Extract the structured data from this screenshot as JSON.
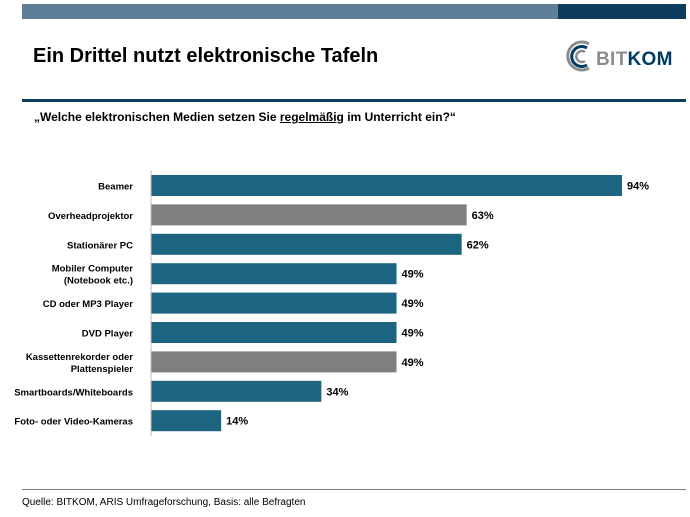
{
  "header": {
    "title": "Ein Drittel nutzt elektronische Tafeln",
    "logo_text_prefix": "BIT",
    "logo_text_suffix": "KOM",
    "logo_icon": "bitkom-arc-logo-icon"
  },
  "question": {
    "prefix": "„Welche elektronischen Medien setzen Sie ",
    "underlined": "regelmäßig",
    "suffix": " im Unterricht ein?“"
  },
  "colors": {
    "bar_primary": "#1c6480",
    "bar_secondary": "#7f7f7f",
    "top_bar_left": "#5f7f99",
    "top_bar_right": "#0e3c5c"
  },
  "chart_data": {
    "type": "bar",
    "orientation": "horizontal",
    "title": "",
    "xlabel": "",
    "ylabel": "",
    "xlim": [
      0,
      100
    ],
    "unit": "%",
    "grid": false,
    "categories": [
      [
        "Beamer"
      ],
      [
        "Overheadprojektor"
      ],
      [
        "Stationärer PC"
      ],
      [
        "Mobiler Computer",
        "(Notebook etc.)"
      ],
      [
        "CD oder MP3 Player"
      ],
      [
        "DVD Player"
      ],
      [
        "Kassettenrekorder oder",
        "Plattenspieler"
      ],
      [
        "Smartboards/Whiteboards"
      ],
      [
        "Foto- oder Video-Kameras"
      ]
    ],
    "values": [
      94,
      63,
      62,
      49,
      49,
      49,
      49,
      34,
      14
    ],
    "value_labels": [
      "94%",
      "63%",
      "62%",
      "49%",
      "49%",
      "49%",
      "49%",
      "34%",
      "14%"
    ],
    "bar_colors": [
      "#1c6480",
      "#7f7f7f",
      "#1c6480",
      "#1c6480",
      "#1c6480",
      "#1c6480",
      "#7f7f7f",
      "#1c6480",
      "#1c6480"
    ]
  },
  "footer": {
    "source": "Quelle: BITKOM, ARIS Umfrageforschung, Basis: alle Befragten"
  }
}
